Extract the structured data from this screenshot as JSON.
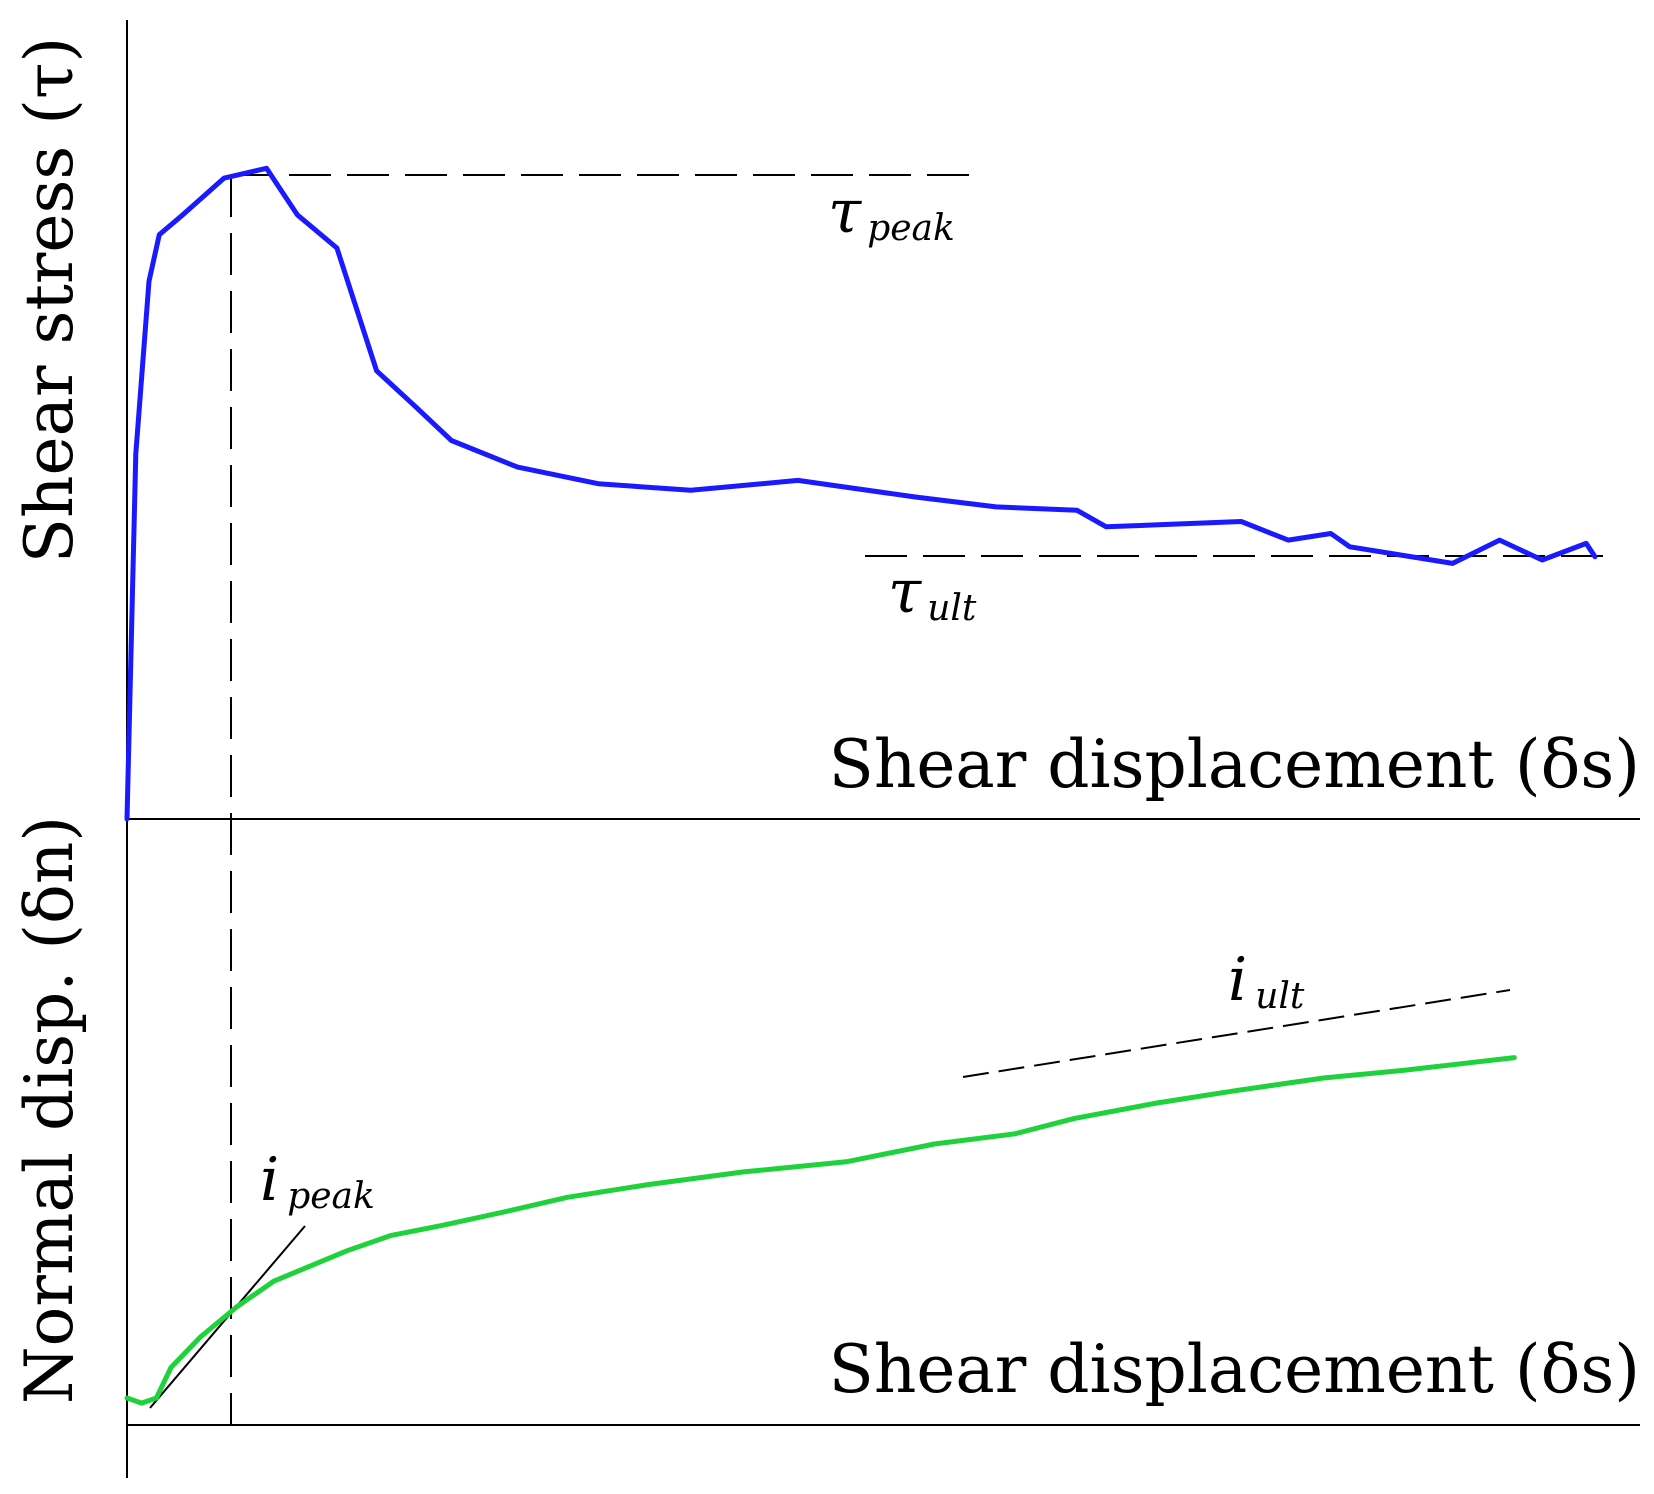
{
  "colors": {
    "shear_curve": "#1a1aff",
    "normal_curve": "#1fd13a",
    "axis": "#000000",
    "reference_line": "#000000"
  },
  "top_panel": {
    "y_axis_label": "Shear stress (τ)",
    "x_axis_label": "Shear displacement (δs)",
    "annotations": {
      "tau_peak": {
        "symbol": "τ",
        "subscript": "peak"
      },
      "tau_ult": {
        "symbol": "τ",
        "subscript": "ult"
      }
    }
  },
  "bottom_panel": {
    "y_axis_label": "Normal disp. (δn)",
    "x_axis_label": "Shear displacement (δs)",
    "annotations": {
      "i_peak": {
        "symbol": "i",
        "subscript": "peak"
      },
      "i_ult": {
        "symbol": "i",
        "subscript": "ult"
      }
    }
  },
  "chart_data": [
    {
      "type": "line",
      "title": "",
      "xlabel": "Shear displacement (δs)",
      "ylabel": "Shear stress (τ)",
      "xlim": [
        0,
        100
      ],
      "ylim": [
        0,
        100
      ],
      "grid": false,
      "series": [
        {
          "x": [
            0,
            0.6,
            1.5,
            2.2,
            3.8,
            6.6,
            9.5,
            10.4,
            11.6,
            14.3,
            17.0,
            19.7,
            22.1,
            26.6,
            32.1,
            38.4,
            45.7,
            53.7,
            59.2,
            64.7,
            66.7,
            75.9,
            79.1,
            82.0,
            83.3,
            90.3,
            93.5,
            96.4,
            99.4,
            100
          ],
          "y": [
            0,
            55,
            81,
            88,
            91,
            96.5,
            98,
            95,
            91,
            86,
            67.5,
            62,
            57,
            53,
            50.5,
            49.5,
            51,
            48.5,
            47,
            46.5,
            44,
            44.8,
            42,
            43,
            41,
            38.5,
            42,
            39,
            41.5,
            39.5
          ]
        }
      ]
    },
    {
      "type": "line",
      "title": "",
      "xlabel": "Shear displacement (δs)",
      "ylabel": "Normal disp. (δn)",
      "xlim": [
        0,
        100
      ],
      "ylim": [
        0,
        100
      ],
      "grid": false,
      "series": [
        {
          "x": [
            0,
            1.0,
            2.0,
            3.0,
            5.0,
            7.5,
            10.0,
            12.5,
            15.0,
            18.0,
            21.5,
            25.5,
            30.0,
            35.5,
            42.0,
            49.0,
            55.0,
            60.5,
            64.5,
            70.0,
            75.5,
            81.5,
            87.0,
            91.5,
            94.5
          ],
          "y": [
            0,
            -1,
            0,
            6,
            12,
            18,
            23,
            26,
            29,
            32,
            34,
            36.5,
            39.5,
            42,
            44.5,
            46.5,
            50,
            52,
            55,
            58,
            60.5,
            63,
            64.5,
            66,
            67
          ]
        }
      ]
    }
  ]
}
